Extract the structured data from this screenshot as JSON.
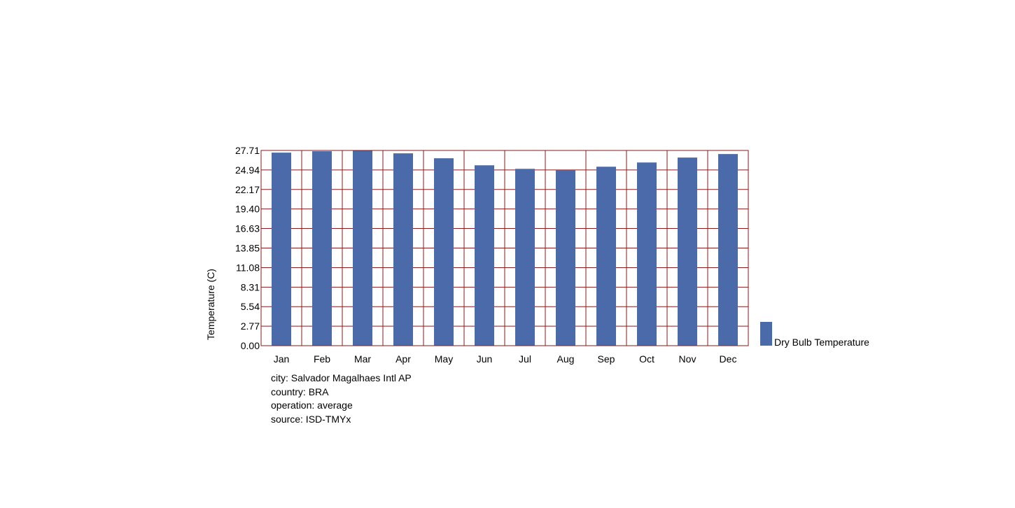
{
  "chart_data": {
    "type": "bar",
    "categories": [
      "Jan",
      "Feb",
      "Mar",
      "Apr",
      "May",
      "Jun",
      "Jul",
      "Aug",
      "Sep",
      "Oct",
      "Nov",
      "Dec"
    ],
    "series": [
      {
        "name": "Dry Bulb Temperature",
        "values": [
          27.4,
          27.6,
          27.71,
          27.3,
          26.6,
          25.6,
          25.1,
          24.9,
          25.4,
          26.0,
          26.7,
          27.2
        ]
      }
    ],
    "ylabel": "Temperature (C)",
    "xlabel": "",
    "y_ticks": [
      "0.00",
      "2.77",
      "5.54",
      "8.31",
      "11.08",
      "13.85",
      "16.63",
      "19.40",
      "22.17",
      "24.94",
      "27.71"
    ],
    "ylim": [
      0,
      27.71
    ],
    "grid": true,
    "legend_position": "right",
    "colors": {
      "bar": "#4a6aaa",
      "grid": "#8b1a1a",
      "text": "#000000"
    }
  },
  "info": {
    "city": "city: Salvador Magalhaes Intl AP",
    "country": "country: BRA",
    "operation": "operation: average",
    "source": "source: ISD-TMYx"
  }
}
